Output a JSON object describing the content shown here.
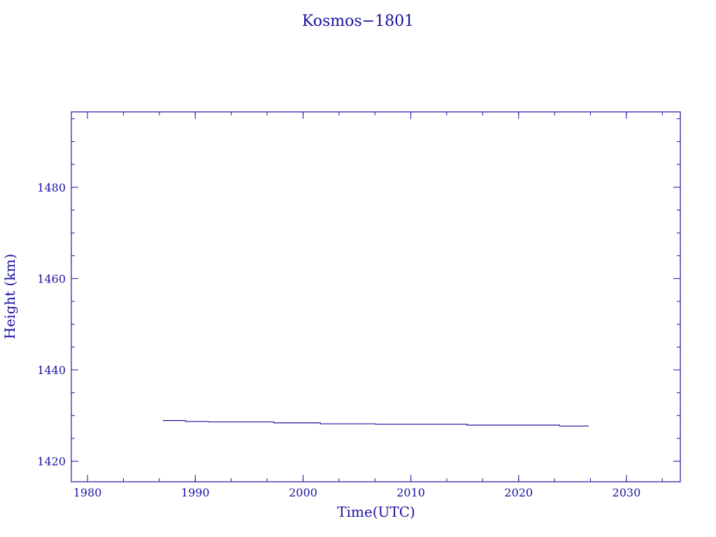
{
  "chart_data": {
    "type": "line",
    "title": "Kosmos−1801",
    "xlabel": "Time(UTC)",
    "ylabel": "Height (km)",
    "xlim": [
      1978.5,
      2035
    ],
    "ylim": [
      1415.5,
      1496.5
    ],
    "x_ticks": [
      1980,
      1990,
      2000,
      2010,
      2020,
      2030
    ],
    "x_tick_labels": [
      "1980",
      "1990",
      "2000",
      "2010",
      "2020",
      "2030"
    ],
    "x_minor_step": 3.333,
    "y_ticks": [
      1420,
      1440,
      1460,
      1480
    ],
    "y_tick_labels": [
      "1420",
      "1440",
      "1460",
      "1480"
    ],
    "y_minor_step": 5,
    "grid": false,
    "series": [
      {
        "x": [
          1987.0,
          1989.1,
          1989.1,
          1991.2,
          1991.2,
          1997.3,
          1997.3,
          2001.6,
          2001.6,
          2006.7,
          2006.7,
          2015.2,
          2015.2,
          2023.8,
          2023.8,
          2026.5
        ],
        "values": [
          1428.9,
          1428.9,
          1428.7,
          1428.7,
          1428.6,
          1428.6,
          1428.4,
          1428.4,
          1428.2,
          1428.2,
          1428.1,
          1428.1,
          1427.9,
          1427.9,
          1427.7,
          1427.7
        ]
      }
    ],
    "colors": {
      "ink": "#1a0fa0"
    }
  }
}
